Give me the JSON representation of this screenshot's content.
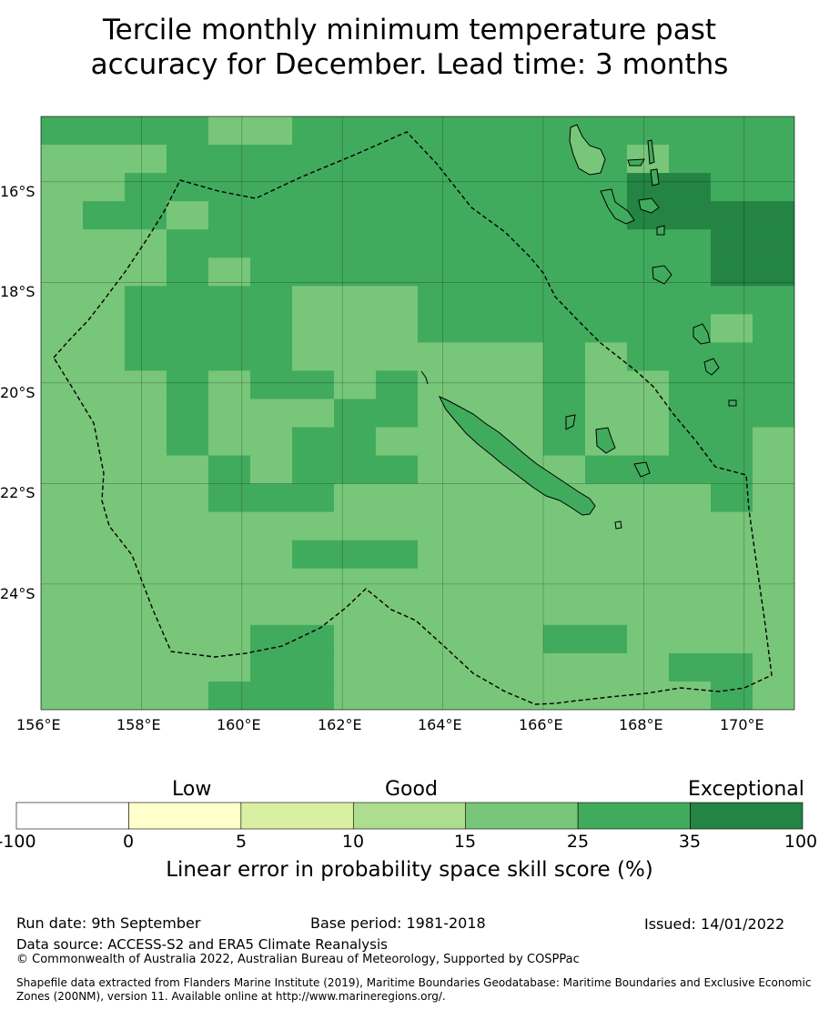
{
  "title_line1": "Tercile monthly minimum temperature past",
  "title_line2": "accuracy for December. Lead time: 3 months",
  "map": {
    "lon_range": [
      156,
      171
    ],
    "lat_range": [
      -26.5,
      -14.7
    ],
    "lon_ticks": [
      "156°E",
      "158°E",
      "160°E",
      "162°E",
      "164°E",
      "166°E",
      "168°E",
      "170°E"
    ],
    "lat_ticks": [
      "16°S",
      "18°S",
      "20°S",
      "22°S",
      "24°S"
    ],
    "grid": true,
    "category_colors": [
      "#ffffff",
      "#ffffcc",
      "#d9f0a3",
      "#addd8e",
      "#78c679",
      "#41ab5d",
      "#238443"
    ]
  },
  "colorbar": {
    "categories": [
      "Low",
      "Good",
      "Exceptional"
    ],
    "ticks": [
      "-100",
      "0",
      "5",
      "10",
      "15",
      "25",
      "35",
      "100"
    ],
    "colors": [
      "#ffffff",
      "#ffffcc",
      "#d9f0a3",
      "#addd8e",
      "#78c679",
      "#41ab5d",
      "#238443"
    ],
    "label": "Linear error in probability space skill score (%)"
  },
  "footer": {
    "run_date": "Run date: 9th September",
    "base_period": "Base period: 1981-2018",
    "issued": "Issued: 14/01/2022",
    "data_source": "Data source: ACCESS-S2 and ERA5 Climate Reanalysis",
    "copyright": "© Commonwealth of Australia 2022, Australian Bureau of Meteorology, Supported by COSPPac",
    "shapefile_line1": "Shapefile data extracted from Flanders Marine Institute (2019), Maritime Boundaries Geodatabase: Maritime Boundaries and Exclusive Economic",
    "shapefile_line2": "Zones (200NM), version 11. Available online at http://www.marineregions.org/."
  }
}
